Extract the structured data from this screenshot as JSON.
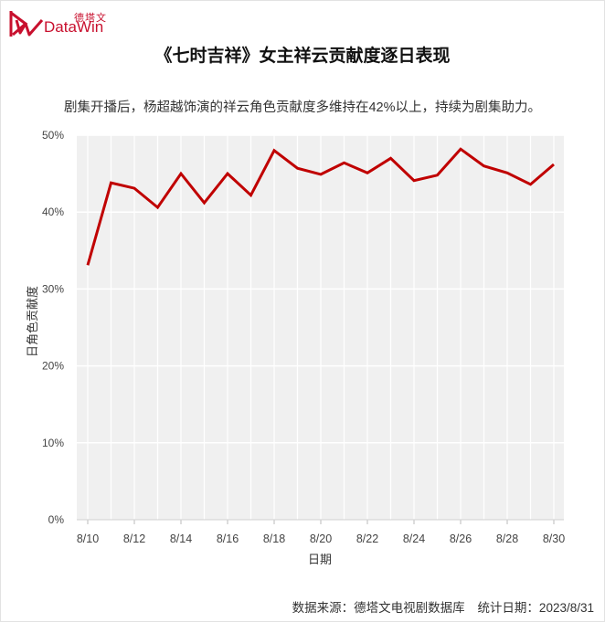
{
  "brand": {
    "logo_cn": "德塔文",
    "logo_en": "DataWin",
    "color": "#c8102e"
  },
  "header": {
    "title": "《七时吉祥》女主祥云贡献度逐日表现",
    "subtitle": "剧集开播后，杨超越饰演的祥云角色贡献度多维持在42%以上，持续为剧集助力。"
  },
  "footer": {
    "source": "数据来源：德塔文电视剧数据库",
    "date": "统计日期：2023/8/31"
  },
  "chart_data": {
    "type": "line",
    "title": "《七时吉祥》女主祥云贡献度逐日表现",
    "xlabel": "日期",
    "ylabel": "日角色贡献度",
    "ylim": [
      0,
      50
    ],
    "yticks": [
      "0%",
      "10%",
      "20%",
      "30%",
      "40%",
      "50%"
    ],
    "xticks": [
      "8/10",
      "8/12",
      "8/14",
      "8/16",
      "8/18",
      "8/20",
      "8/22",
      "8/24",
      "8/26",
      "8/28",
      "8/30"
    ],
    "grid": true,
    "legend": null,
    "line_color": "#c00000",
    "plot_background": "#f0f0f0",
    "x": [
      "8/10",
      "8/11",
      "8/12",
      "8/13",
      "8/14",
      "8/15",
      "8/16",
      "8/17",
      "8/18",
      "8/19",
      "8/20",
      "8/21",
      "8/22",
      "8/23",
      "8/24",
      "8/25",
      "8/26",
      "8/27",
      "8/28",
      "8/29",
      "8/30"
    ],
    "series": [
      {
        "name": "祥云贡献度",
        "values": [
          33.1,
          43.8,
          43.1,
          40.6,
          45.0,
          41.2,
          45.0,
          42.2,
          48.0,
          45.7,
          44.9,
          46.4,
          45.1,
          47.0,
          44.1,
          44.8,
          48.2,
          46.0,
          45.1,
          43.6,
          46.2
        ]
      }
    ]
  }
}
